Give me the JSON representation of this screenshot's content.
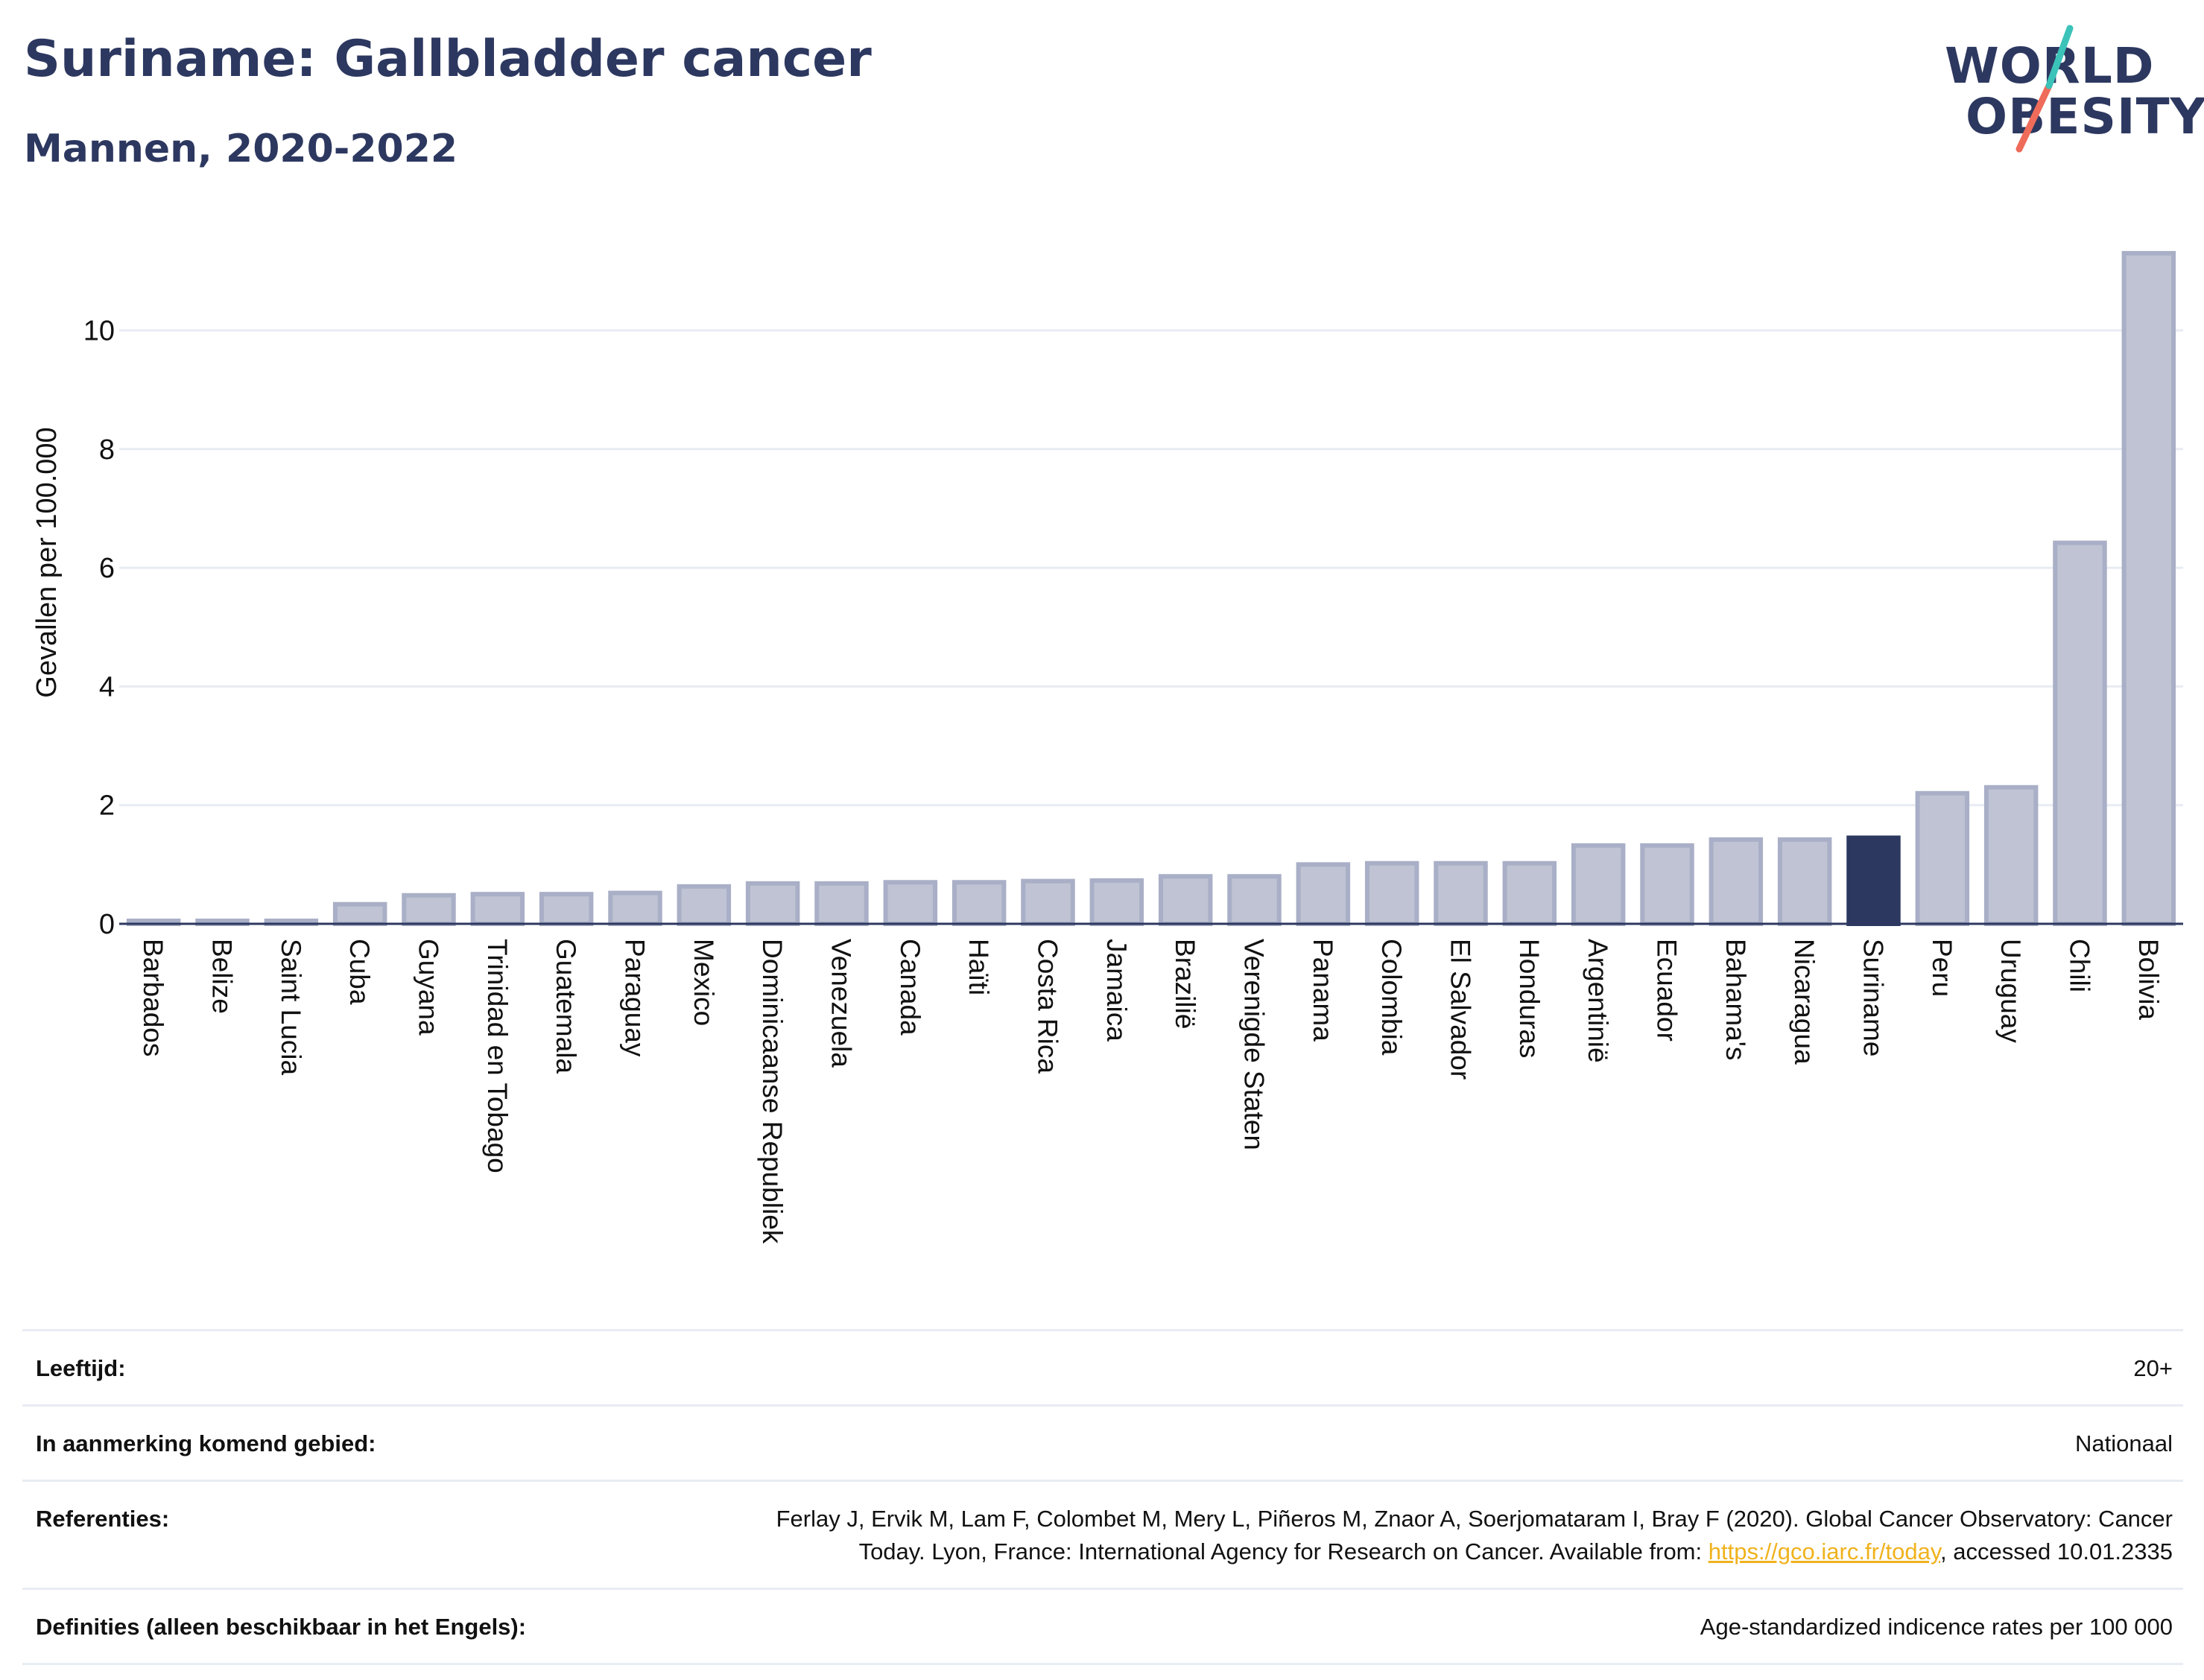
{
  "header": {
    "title": "Suriname: Gallbladder cancer",
    "subtitle": "Mannen, 2020-2022"
  },
  "logo": {
    "line1": "WORLD",
    "line2": "OBESITY"
  },
  "colors": {
    "bar": "#bfc3d3",
    "bar_border": "#a9afc6",
    "highlight": "#2d3860",
    "text": "#2d3860",
    "grid": "#e8ecf3",
    "link": "#f0b21d"
  },
  "chart_data": {
    "type": "bar",
    "ylabel": "Gevallen per 100.000",
    "xlabel": "",
    "ylim": [
      0,
      11.6
    ],
    "yticks": [
      0,
      2,
      4,
      6,
      8,
      10
    ],
    "highlight": "Suriname",
    "categories": [
      "Barbados",
      "Belize",
      "Saint Lucia",
      "Cuba",
      "Guyana",
      "Trinidad en Tobago",
      "Guatemala",
      "Paraguay",
      "Mexico",
      "Dominicaanse Republiek",
      "Venezuela",
      "Canada",
      "Haïti",
      "Costa Rica",
      "Jamaica",
      "Brazilië",
      "Verenigde Staten",
      "Panama",
      "Colombia",
      "El Salvador",
      "Honduras",
      "Argentinië",
      "Ecuador",
      "Bahama's",
      "Nicaragua",
      "Suriname",
      "Peru",
      "Uruguay",
      "Chili",
      "Bolivia"
    ],
    "values": [
      0.05,
      0.05,
      0.05,
      0.33,
      0.48,
      0.5,
      0.5,
      0.52,
      0.63,
      0.68,
      0.68,
      0.7,
      0.7,
      0.72,
      0.73,
      0.8,
      0.8,
      1.0,
      1.02,
      1.02,
      1.02,
      1.32,
      1.32,
      1.42,
      1.42,
      1.45,
      2.2,
      2.3,
      6.42,
      11.3
    ],
    "grid": true
  },
  "meta": [
    {
      "label": "Leeftijd:",
      "value": "20+"
    },
    {
      "label": "In aanmerking komend gebied:",
      "value": "Nationaal"
    },
    {
      "label": "Referenties:",
      "value_line1": "Ferlay J, Ervik M, Lam F, Colombet M, Mery L, Piñeros M, Znaor A, Soerjomataram I, Bray F (2020). Global Cancer Observatory: Cancer",
      "value_line2_pre": "Today. Lyon, France: International Agency for Research on Cancer. Available from: ",
      "link": "https://gco.iarc.fr/today",
      "value_line2_post": ", accessed 10.01.2335"
    },
    {
      "label": "Definities (alleen beschikbaar in het Engels):",
      "value": "Age-standardized indicence rates per 100 000"
    }
  ]
}
